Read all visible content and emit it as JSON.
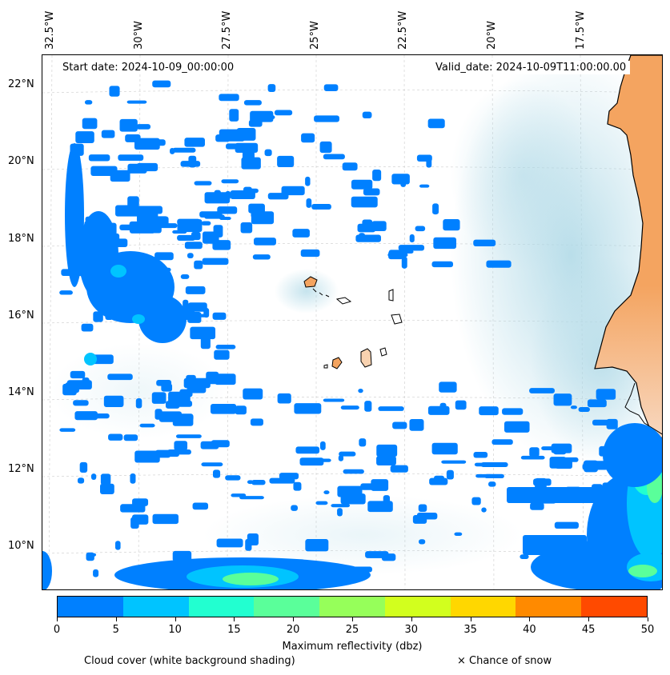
{
  "map": {
    "longitude_labels": [
      "32.5°W",
      "30°W",
      "27.5°W",
      "25°W",
      "22.5°W",
      "20°W",
      "17.5°W"
    ],
    "latitude_labels": [
      "22°N",
      "20°N",
      "18°N",
      "16°N",
      "14°N",
      "12°N",
      "10°N"
    ],
    "start_date": "Start date: 2024-10-09_00:00:00",
    "valid_date": "Valid_date: 2024-10-09T11:00:00.00",
    "colors": {
      "land": "#f4a460",
      "cloud": "#add8e6",
      "coast": "#000000"
    }
  },
  "colorbar": {
    "title": "Maximum reflectivity (dbz)",
    "ticks": [
      "0",
      "5",
      "10",
      "15",
      "20",
      "25",
      "30",
      "35",
      "40",
      "45",
      "50"
    ],
    "colors": [
      "#0080ff",
      "#00c4ff",
      "#22ffd0",
      "#5aff9a",
      "#96ff5a",
      "#d2ff1e",
      "#ffd700",
      "#ff8a00",
      "#ff4a00"
    ],
    "cloud_note": "Cloud cover (white background shading)",
    "snow_note": "× Chance of snow"
  }
}
